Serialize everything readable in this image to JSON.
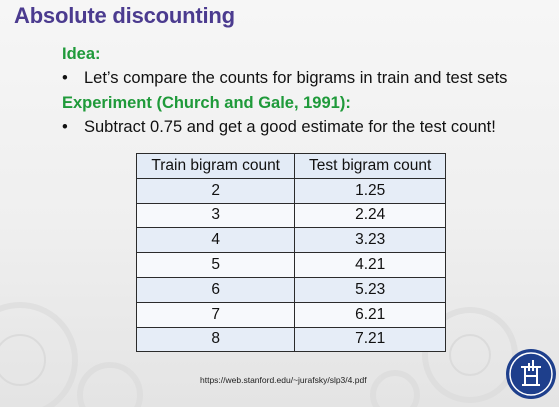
{
  "slide": {
    "title": "Absolute discounting",
    "idea_heading": "Idea:",
    "idea_bullet": "Let’s compare the counts for bigrams in train and test sets",
    "experiment_heading": "Experiment (Church and Gale, 1991):",
    "experiment_bullet": "Subtract 0.75 and get a good estimate for the test count!",
    "bullet_glyph": "•",
    "source": "https://web.stanford.edu/~jurafsky/slp3/4.pdf"
  },
  "table": {
    "headers": [
      "Train bigram count",
      "Test bigram count"
    ],
    "rows": [
      [
        "2",
        "1.25"
      ],
      [
        "3",
        "2.24"
      ],
      [
        "4",
        "3.23"
      ],
      [
        "5",
        "4.21"
      ],
      [
        "6",
        "5.23"
      ],
      [
        "7",
        "6.21"
      ],
      [
        "8",
        "7.21"
      ]
    ]
  },
  "colors": {
    "title": "#4b3b8f",
    "heading": "#1f9a3a",
    "logo_background": "#1e3f8c"
  },
  "icons": {
    "logo": "hse-university-logo-icon"
  }
}
